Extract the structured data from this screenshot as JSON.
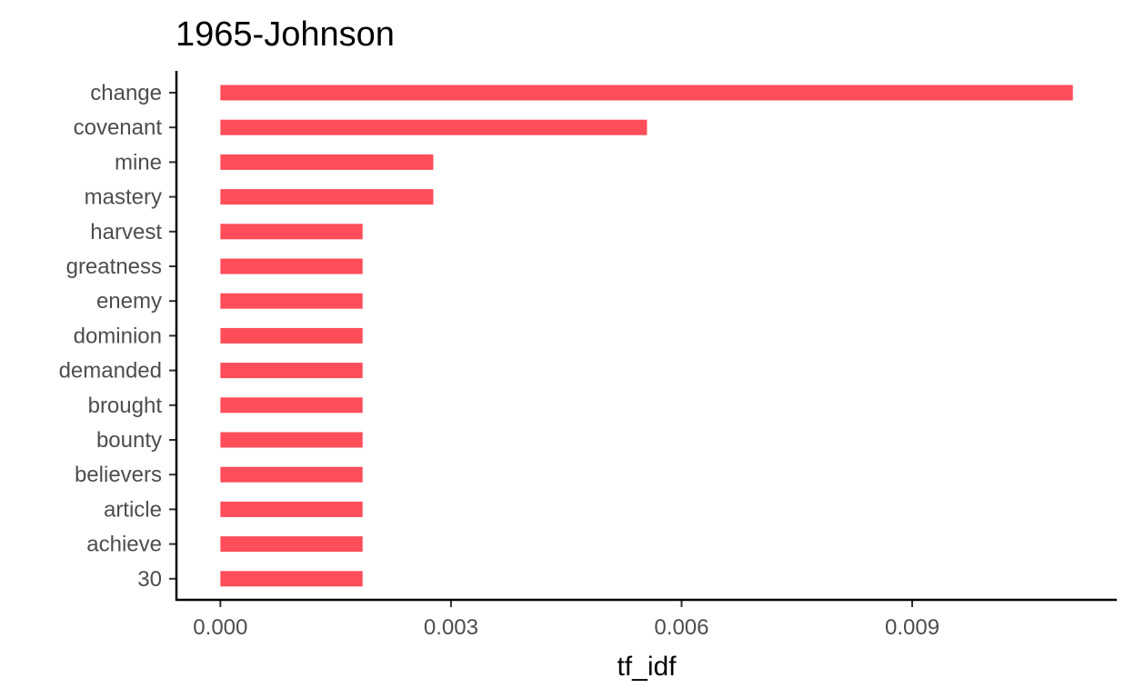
{
  "chart_data": {
    "type": "bar",
    "orientation": "horizontal",
    "title": "1965-Johnson",
    "xlabel": "tf_idf",
    "ylabel": "",
    "categories": [
      "change",
      "covenant",
      "mine",
      "mastery",
      "harvest",
      "greatness",
      "enemy",
      "dominion",
      "demanded",
      "brought",
      "bounty",
      "believers",
      "article",
      "achieve",
      "30"
    ],
    "values": [
      0.01109,
      0.00555,
      0.00277,
      0.00277,
      0.00185,
      0.00185,
      0.00185,
      0.00185,
      0.00185,
      0.00185,
      0.00185,
      0.00185,
      0.00185,
      0.00185,
      0.00185
    ],
    "xlim": [
      -0.00056,
      0.01165
    ],
    "xticks": [
      "0.000",
      "0.003",
      "0.006",
      "0.009"
    ],
    "xtick_values": [
      0,
      0.003,
      0.006,
      0.009
    ],
    "bar_color": "#FF4D5A",
    "grid": false,
    "legend": "none"
  }
}
